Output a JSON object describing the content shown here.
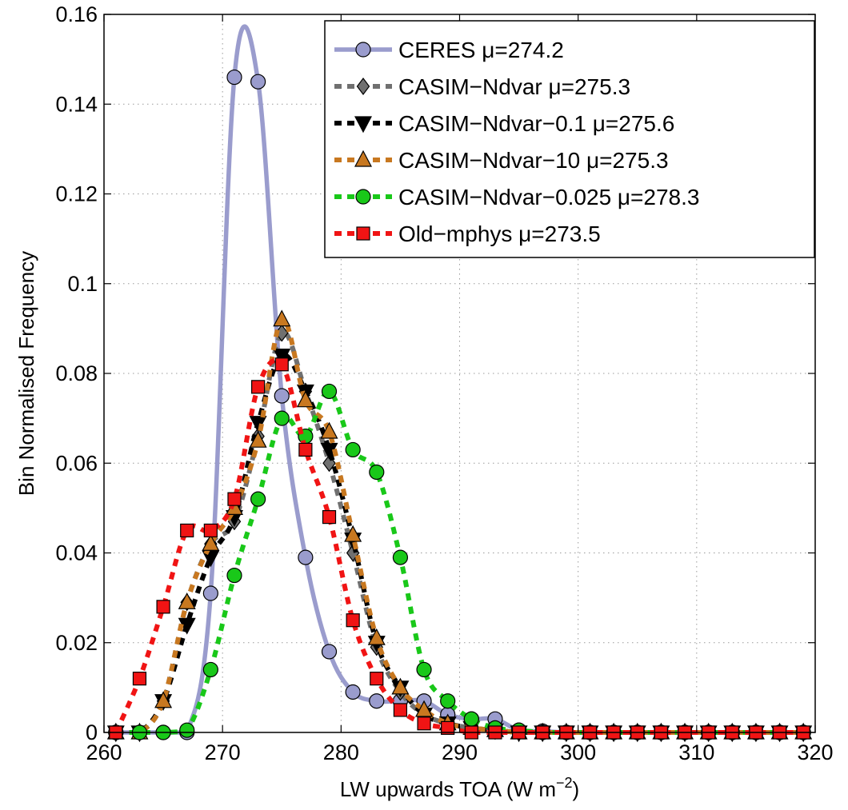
{
  "chart_data": {
    "type": "line",
    "xlabel": "LW upwards TOA (W m",
    "xlabel_sup": "−2",
    "xlabel_end": ")",
    "ylabel": "Bin Normalised Frequency",
    "xlim": [
      260,
      320
    ],
    "ylim": [
      0,
      0.16
    ],
    "x_ticks": [
      260,
      270,
      280,
      290,
      300,
      310,
      320
    ],
    "y_ticks": [
      0,
      0.02,
      0.04,
      0.06,
      0.08,
      0.1,
      0.12,
      0.14,
      0.16
    ],
    "x_tick_labels": [
      "260",
      "270",
      "280",
      "290",
      "300",
      "310",
      "320"
    ],
    "y_tick_labels": [
      "0",
      "0.02",
      "0.04",
      "0.06",
      "0.08",
      "0.1",
      "0.12",
      "0.14",
      "0.16"
    ],
    "grid": true,
    "legend_position": "top-right",
    "x": [
      261,
      263,
      265,
      267,
      269,
      271,
      273,
      275,
      277,
      279,
      281,
      283,
      285,
      287,
      289,
      291,
      293,
      295,
      297,
      299,
      301,
      303,
      305,
      307,
      309,
      311,
      313,
      315,
      317,
      319
    ],
    "series": [
      {
        "name": "CERES μ=274.2",
        "color": "#9a9ccd",
        "marker": "circle",
        "dashed": false,
        "values": [
          0,
          0,
          0,
          0,
          0.031,
          0.146,
          0.145,
          0.075,
          0.039,
          0.018,
          0.009,
          0.007,
          0.007,
          0.007,
          0.004,
          0.003,
          0.003,
          0.0005,
          0.0003,
          0,
          0,
          0,
          0,
          0,
          0,
          0,
          0,
          0,
          0,
          0
        ]
      },
      {
        "name": "CASIM−Ndvar μ=275.3",
        "color": "#707070",
        "marker": "diamond",
        "dashed": true,
        "values": [
          0,
          0,
          0.007,
          0.029,
          0.042,
          0.047,
          0.066,
          0.089,
          0.076,
          0.06,
          0.04,
          0.019,
          0.009,
          0.004,
          0.002,
          0.001,
          0.0005,
          0,
          0,
          0,
          0,
          0,
          0,
          0,
          0,
          0,
          0,
          0,
          0,
          0
        ]
      },
      {
        "name": "CASIM−Ndvar−0.1 μ=275.6",
        "color": "#000000",
        "marker": "triangle-down",
        "dashed": true,
        "values": [
          0,
          0,
          0.007,
          0.024,
          0.039,
          0.048,
          0.069,
          0.084,
          0.076,
          0.063,
          0.043,
          0.02,
          0.01,
          0.004,
          0.002,
          0.001,
          0.0005,
          0,
          0,
          0,
          0,
          0,
          0,
          0,
          0,
          0,
          0,
          0,
          0,
          0
        ]
      },
      {
        "name": "CASIM−Ndvar−10 μ=275.3",
        "color": "#c87820",
        "marker": "triangle-up",
        "dashed": true,
        "values": [
          0,
          0,
          0.007,
          0.029,
          0.042,
          0.05,
          0.065,
          0.092,
          0.074,
          0.067,
          0.044,
          0.021,
          0.01,
          0.005,
          0.002,
          0.001,
          0.0005,
          0,
          0,
          0,
          0,
          0,
          0,
          0,
          0,
          0,
          0,
          0,
          0,
          0
        ]
      },
      {
        "name": "CASIM−Ndvar−0.025 μ=278.3",
        "color": "#19c819",
        "marker": "circle",
        "dashed": true,
        "values": [
          0,
          0,
          0,
          0.0005,
          0.014,
          0.035,
          0.052,
          0.07,
          0.066,
          0.076,
          0.063,
          0.058,
          0.039,
          0.014,
          0.007,
          0.003,
          0.001,
          0.0005,
          0,
          0,
          0,
          0,
          0,
          0,
          0,
          0,
          0,
          0,
          0,
          0
        ]
      },
      {
        "name": "Old−mphys μ=273.5",
        "color": "#f01414",
        "marker": "square",
        "dashed": true,
        "values": [
          0,
          0.012,
          0.028,
          0.045,
          0.045,
          0.052,
          0.077,
          0.082,
          0.063,
          0.048,
          0.025,
          0.012,
          0.005,
          0.002,
          0.001,
          0,
          0,
          0,
          0,
          0,
          0,
          0,
          0,
          0,
          0,
          0,
          0,
          0,
          0,
          0
        ]
      }
    ]
  }
}
